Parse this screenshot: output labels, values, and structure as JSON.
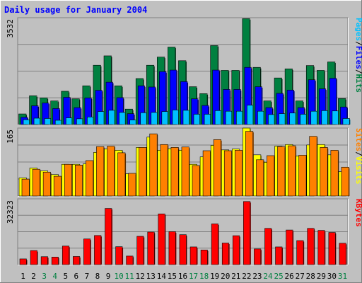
{
  "chart_data": {
    "type": "bar",
    "title": "Daily usage for January 2004",
    "days": [
      "1",
      "2",
      "3",
      "4",
      "5",
      "6",
      "7",
      "8",
      "9",
      "10",
      "11",
      "12",
      "13",
      "14",
      "15",
      "16",
      "17",
      "18",
      "19",
      "20",
      "21",
      "22",
      "23",
      "24",
      "25",
      "26",
      "27",
      "28",
      "29",
      "30",
      "31"
    ],
    "weekend_days": [
      3,
      4,
      10,
      11,
      17,
      18,
      24,
      25,
      31
    ],
    "panels": [
      {
        "id": "top",
        "ymax": 3532,
        "ymax_label": "3532",
        "right_labels": [
          {
            "text": "Pages",
            "color": "#00c0ff"
          },
          {
            "text": "/",
            "color": "#000000"
          },
          {
            "text": "Files",
            "color": "#0000ff"
          },
          {
            "text": "/",
            "color": "#000000"
          },
          {
            "text": "Hits",
            "color": "#008040"
          }
        ],
        "series": [
          {
            "name": "Hits",
            "color": "#008040",
            "values": [
              350,
              950,
              880,
              780,
              1100,
              850,
              1280,
              1960,
              2270,
              1280,
              510,
              1520,
              1960,
              2230,
              2560,
              2110,
              1250,
              1020,
              2610,
              1790,
              1790,
              3500,
              1890,
              780,
              1540,
              1840,
              780,
              1950,
              1790,
              2070,
              860
            ]
          },
          {
            "name": "Files",
            "color": "#0000ff",
            "values": [
              240,
              620,
              710,
              530,
              900,
              560,
              880,
              1130,
              1400,
              890,
              360,
              1280,
              1240,
              1750,
              1800,
              1420,
              850,
              630,
              1800,
              1160,
              1160,
              1890,
              1250,
              560,
              1030,
              1140,
              560,
              1480,
              1180,
              1530,
              580
            ]
          },
          {
            "name": "Pages",
            "color": "#00c0ff",
            "values": [
              160,
              210,
              200,
              140,
              220,
              190,
              250,
              430,
              470,
              400,
              150,
              390,
              400,
              430,
              480,
              470,
              340,
              340,
              460,
              440,
              440,
              640,
              440,
              330,
              360,
              380,
              340,
              440,
              460,
              450,
              200
            ]
          }
        ]
      },
      {
        "id": "middle",
        "ymax": 165,
        "ymax_label": "165",
        "right_labels": [
          {
            "text": "Sites",
            "color": "#ff8000"
          },
          {
            "text": "/",
            "color": "#000000"
          },
          {
            "text": "Visits",
            "color": "#ffff00"
          }
        ],
        "series": [
          {
            "name": "Visits",
            "color": "#ffff00",
            "values": [
              44,
              68,
              61,
              52,
              77,
              77,
              78,
              106,
              114,
              111,
              54,
              118,
              143,
              111,
              115,
              111,
              77,
              95,
              123,
              112,
              114,
              165,
              100,
              82,
              121,
              125,
              97,
              124,
              125,
              100,
              59
            ]
          },
          {
            "name": "Sites",
            "color": "#ff8000",
            "values": [
              41,
              65,
              58,
              48,
              77,
              75,
              86,
              120,
              121,
              105,
              55,
              118,
              151,
              125,
              118,
              119,
              74,
              110,
              137,
              110,
              111,
              157,
              88,
              98,
              120,
              122,
              99,
              145,
              118,
              111,
              70
            ]
          }
        ]
      },
      {
        "id": "bottom",
        "ymax": 32323,
        "ymax_label": "32323",
        "right_labels": [
          {
            "text": "KBytes",
            "color": "#ff0000"
          }
        ],
        "series": [
          {
            "name": "KBytes",
            "color": "#ff0000",
            "values": [
              2800,
              6900,
              3900,
              3700,
              9100,
              4000,
              12600,
              14300,
              27600,
              8800,
              4200,
              13900,
              16000,
              24900,
              16200,
              14700,
              8700,
              7200,
              20000,
              10600,
              14200,
              31000,
              7700,
              17800,
              8700,
              17000,
              11800,
              17800,
              16800,
              15800,
              10500
            ]
          }
        ]
      }
    ]
  }
}
